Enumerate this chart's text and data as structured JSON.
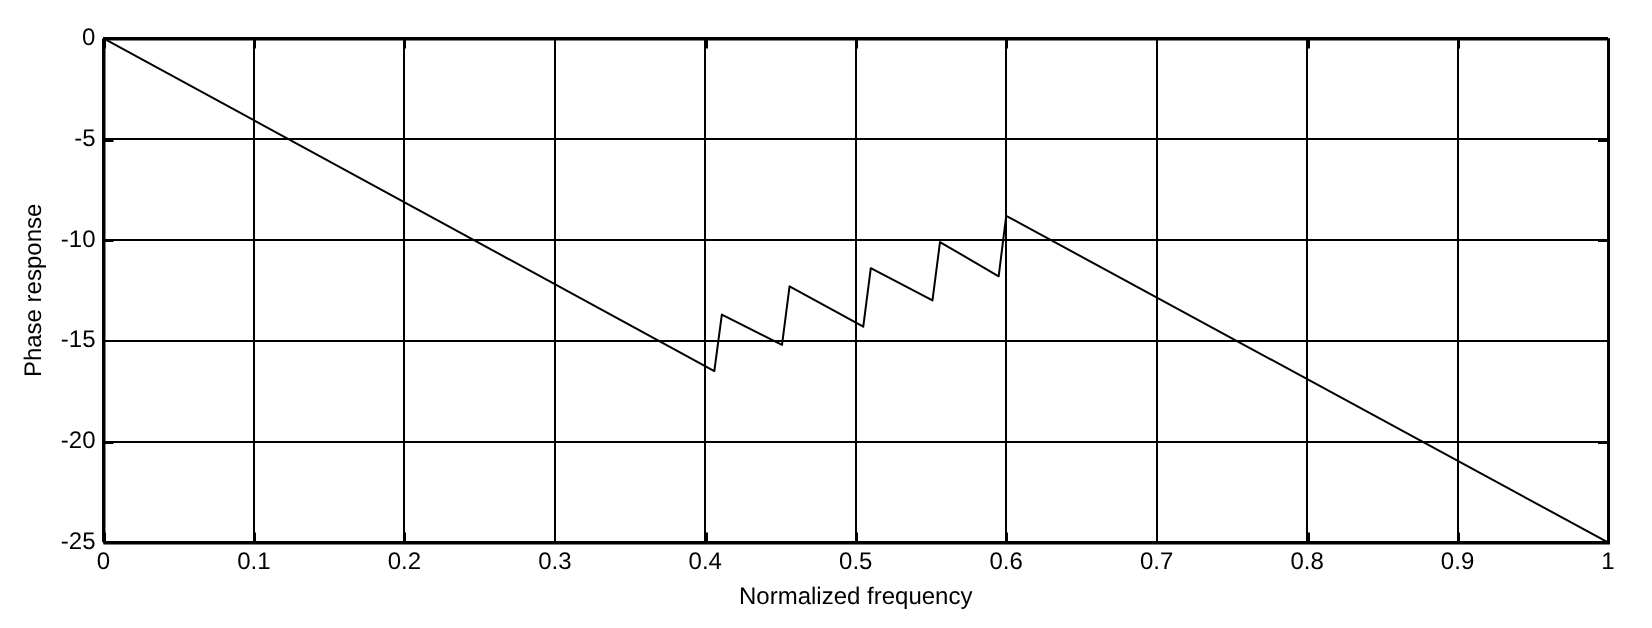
{
  "chart_data": {
    "type": "line",
    "xlabel": "Normalized frequency",
    "ylabel": "Phase response",
    "series": [
      {
        "color": "#000000",
        "x": [
          0,
          0.406,
          0.411,
          0.451,
          0.456,
          0.505,
          0.51,
          0.551,
          0.556,
          0.595,
          0.6,
          1
        ],
        "values": [
          0,
          -16.5,
          -13.7,
          -15.2,
          -12.3,
          -14.3,
          -11.4,
          -13,
          -10.1,
          -11.8,
          -8.8,
          -25
        ]
      }
    ],
    "xlim": [
      0,
      1
    ],
    "xticks": [
      0,
      0.1,
      0.2,
      0.3,
      0.4,
      0.5,
      0.6,
      0.7,
      0.8,
      0.9,
      1
    ],
    "ylim": [
      -25,
      0
    ],
    "yticks": [
      -25,
      -20,
      -15,
      -10,
      -5,
      0
    ],
    "grid": true,
    "legend": false,
    "marker": "none",
    "line_style": "solid"
  }
}
